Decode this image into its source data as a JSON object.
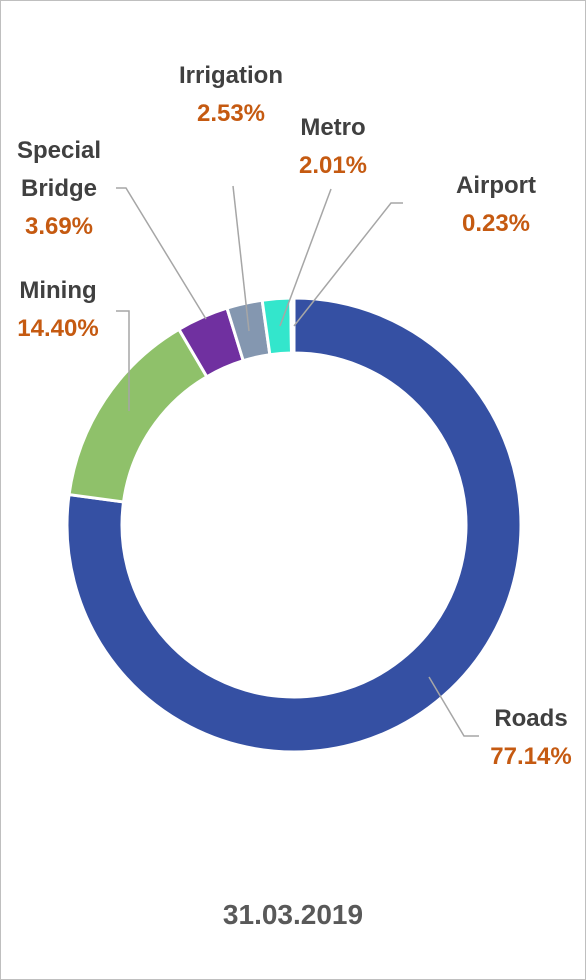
{
  "chart_data": {
    "type": "donut",
    "title": "31.03.2019",
    "categories": [
      "Roads",
      "Mining",
      "Special Bridge",
      "Irrigation",
      "Metro",
      "Airport"
    ],
    "values": [
      77.14,
      14.4,
      3.69,
      2.53,
      2.01,
      0.23
    ],
    "value_labels": [
      "77.14%",
      "14.40%",
      "3.69%",
      "2.53%",
      "2.01%",
      "0.23%"
    ],
    "colors": [
      "#3550a3",
      "#8fc16a",
      "#7030a0",
      "#8497b0",
      "#33e6cc",
      "#eef7f8"
    ]
  }
}
